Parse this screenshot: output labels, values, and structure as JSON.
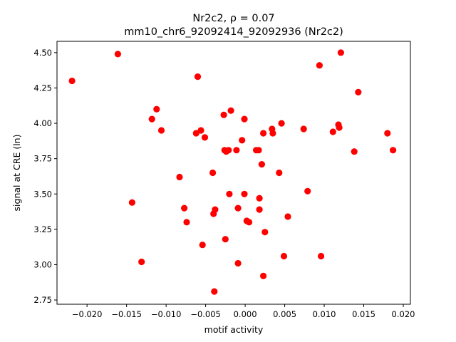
{
  "chart_data": {
    "type": "scatter",
    "title_line1": "Nr2c2, ρ = 0.07",
    "title_line2": "mm10_chr6_92092414_92092936 (Nr2c2)",
    "xlabel": "motif activity",
    "ylabel": "signal at CRE (ln)",
    "xlim": [
      -0.0238,
      0.0209
    ],
    "ylim": [
      2.72,
      4.58
    ],
    "xticks": [
      -0.02,
      -0.015,
      -0.01,
      -0.005,
      0.0,
      0.005,
      0.01,
      0.015,
      0.02
    ],
    "xtick_labels": [
      "−0.020",
      "−0.015",
      "−0.010",
      "−0.005",
      "0.000",
      "0.005",
      "0.010",
      "0.015",
      "0.020"
    ],
    "yticks": [
      2.75,
      3.0,
      3.25,
      3.5,
      3.75,
      4.0,
      4.25,
      4.5
    ],
    "ytick_labels": [
      "2.75",
      "3.00",
      "3.25",
      "3.50",
      "3.75",
      "4.00",
      "4.25",
      "4.50"
    ],
    "marker_color": "#ff0000",
    "grid": false,
    "points": [
      {
        "x": -0.0219,
        "y": 4.3
      },
      {
        "x": -0.0161,
        "y": 4.49
      },
      {
        "x": -0.0143,
        "y": 3.44
      },
      {
        "x": -0.0131,
        "y": 3.02
      },
      {
        "x": -0.0118,
        "y": 4.03
      },
      {
        "x": -0.0112,
        "y": 4.1
      },
      {
        "x": -0.0106,
        "y": 3.95
      },
      {
        "x": -0.0083,
        "y": 3.62
      },
      {
        "x": -0.0077,
        "y": 3.4
      },
      {
        "x": -0.0074,
        "y": 3.3
      },
      {
        "x": -0.0062,
        "y": 3.93
      },
      {
        "x": -0.006,
        "y": 4.33
      },
      {
        "x": -0.0056,
        "y": 3.95
      },
      {
        "x": -0.0054,
        "y": 3.14
      },
      {
        "x": -0.0051,
        "y": 3.9
      },
      {
        "x": -0.0041,
        "y": 3.65
      },
      {
        "x": -0.004,
        "y": 3.36
      },
      {
        "x": -0.0039,
        "y": 2.81
      },
      {
        "x": -0.0038,
        "y": 3.39
      },
      {
        "x": -0.0027,
        "y": 4.06
      },
      {
        "x": -0.0026,
        "y": 3.81
      },
      {
        "x": -0.0025,
        "y": 3.18
      },
      {
        "x": -0.0024,
        "y": 3.8
      },
      {
        "x": -0.0021,
        "y": 3.81
      },
      {
        "x": -0.002,
        "y": 3.5
      },
      {
        "x": -0.0018,
        "y": 4.09
      },
      {
        "x": -0.0011,
        "y": 3.81
      },
      {
        "x": -0.0009,
        "y": 3.4
      },
      {
        "x": -0.0009,
        "y": 3.01
      },
      {
        "x": -0.0004,
        "y": 3.88
      },
      {
        "x": -0.0001,
        "y": 4.03
      },
      {
        "x": -0.0001,
        "y": 3.5
      },
      {
        "x": 0.0002,
        "y": 3.31
      },
      {
        "x": 0.0005,
        "y": 3.3
      },
      {
        "x": 0.0014,
        "y": 3.81
      },
      {
        "x": 0.0017,
        "y": 3.81
      },
      {
        "x": 0.0018,
        "y": 3.47
      },
      {
        "x": 0.0018,
        "y": 3.39
      },
      {
        "x": 0.0021,
        "y": 3.71
      },
      {
        "x": 0.0023,
        "y": 3.93
      },
      {
        "x": 0.0023,
        "y": 2.92
      },
      {
        "x": 0.0025,
        "y": 3.23
      },
      {
        "x": 0.0034,
        "y": 3.96
      },
      {
        "x": 0.0035,
        "y": 3.93
      },
      {
        "x": 0.0043,
        "y": 3.65
      },
      {
        "x": 0.0046,
        "y": 4.0
      },
      {
        "x": 0.0049,
        "y": 3.06
      },
      {
        "x": 0.0054,
        "y": 3.34
      },
      {
        "x": 0.0074,
        "y": 3.96
      },
      {
        "x": 0.0079,
        "y": 3.52
      },
      {
        "x": 0.0094,
        "y": 4.41
      },
      {
        "x": 0.0096,
        "y": 3.06
      },
      {
        "x": 0.0111,
        "y": 3.94
      },
      {
        "x": 0.0118,
        "y": 3.99
      },
      {
        "x": 0.0119,
        "y": 3.97
      },
      {
        "x": 0.0121,
        "y": 4.5
      },
      {
        "x": 0.0138,
        "y": 3.8
      },
      {
        "x": 0.0143,
        "y": 4.22
      },
      {
        "x": 0.018,
        "y": 3.93
      },
      {
        "x": 0.0187,
        "y": 3.81
      }
    ]
  }
}
